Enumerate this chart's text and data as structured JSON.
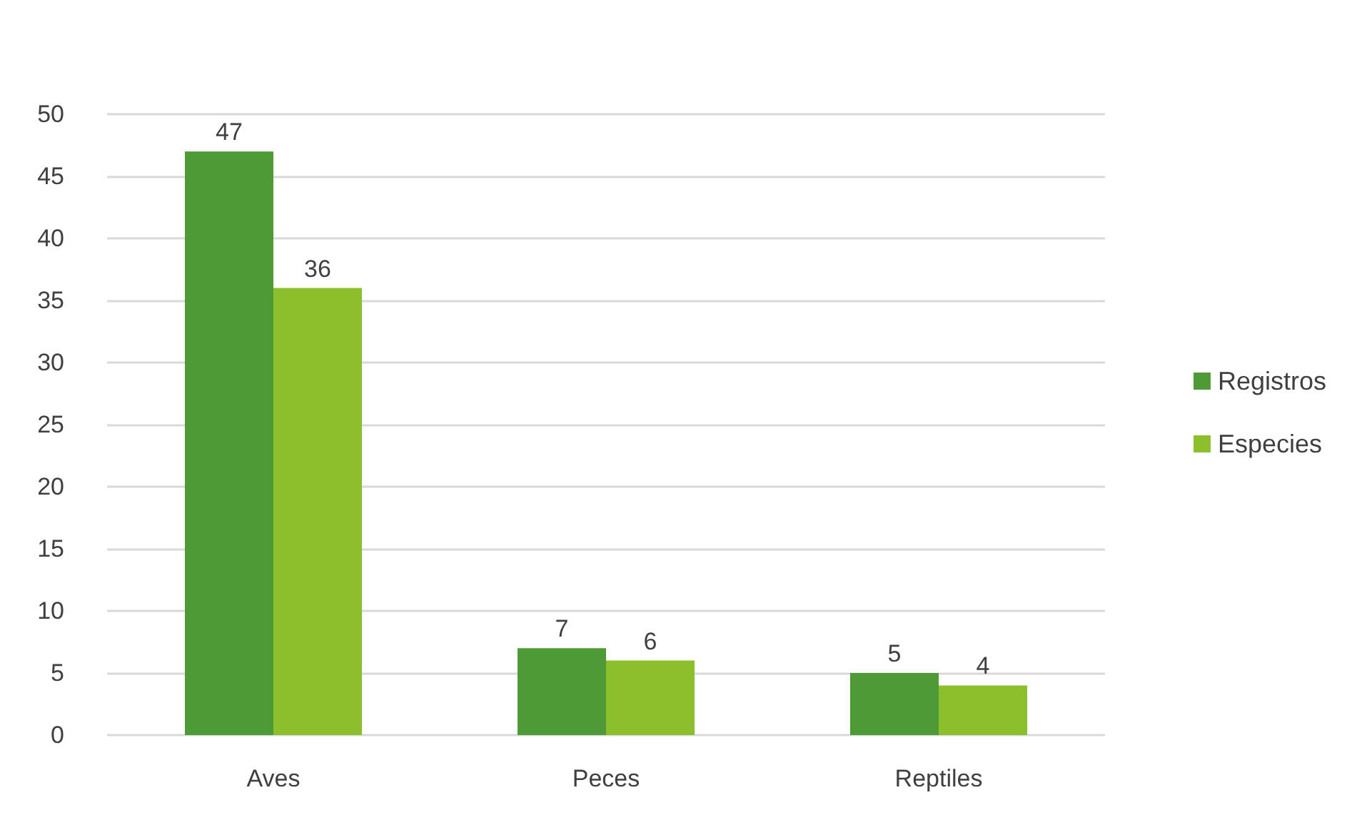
{
  "chart_data": {
    "type": "bar",
    "categories": [
      "Aves",
      "Peces",
      "Reptiles"
    ],
    "series": [
      {
        "name": "Registros",
        "color": "#4e9a37",
        "values": [
          47,
          7,
          5
        ]
      },
      {
        "name": "Especies",
        "color": "#8cbf2c",
        "values": [
          36,
          6,
          4
        ]
      }
    ],
    "ylim": [
      0,
      50
    ],
    "yticks": [
      0,
      5,
      10,
      15,
      20,
      25,
      30,
      35,
      40,
      45,
      50
    ],
    "grid": "y",
    "legend": "right",
    "data_labels": true
  }
}
